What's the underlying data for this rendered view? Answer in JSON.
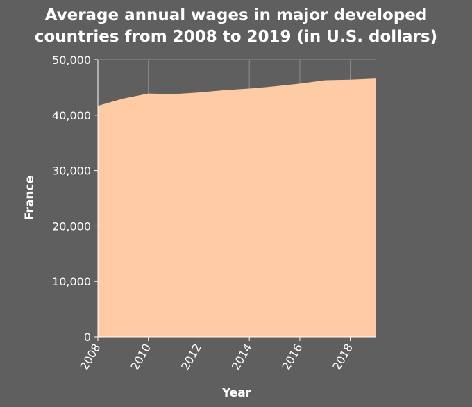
{
  "chart_data": {
    "type": "area",
    "title_lines": [
      "Average annual wages in major developed",
      "countries from 2008 to 2019 (in U.S. dollars)"
    ],
    "xlabel": "Year",
    "ylabel": "France",
    "xlim": [
      2008,
      2019
    ],
    "ylim": [
      0,
      50000
    ],
    "x_ticks": [
      2008,
      2010,
      2012,
      2014,
      2016,
      2018
    ],
    "y_ticks": [
      0,
      10000,
      20000,
      30000,
      40000,
      50000
    ],
    "y_tick_labels": [
      "0",
      "10,000",
      "20,000",
      "30,000",
      "40,000",
      "50,000"
    ],
    "grid": true,
    "series": [
      {
        "x": [
          2008,
          2009,
          2010,
          2011,
          2012,
          2013,
          2014,
          2015,
          2016,
          2017,
          2018,
          2019
        ],
        "values": [
          41700,
          43000,
          43900,
          43800,
          44100,
          44500,
          44800,
          45200,
          45700,
          46300,
          46400,
          46600
        ],
        "color": "#ffcba4"
      }
    ],
    "colors": {
      "background": "#5f5f5f",
      "grid": "#8f8f8f",
      "fill": "#ffcba4",
      "text": "#ffffff"
    }
  }
}
